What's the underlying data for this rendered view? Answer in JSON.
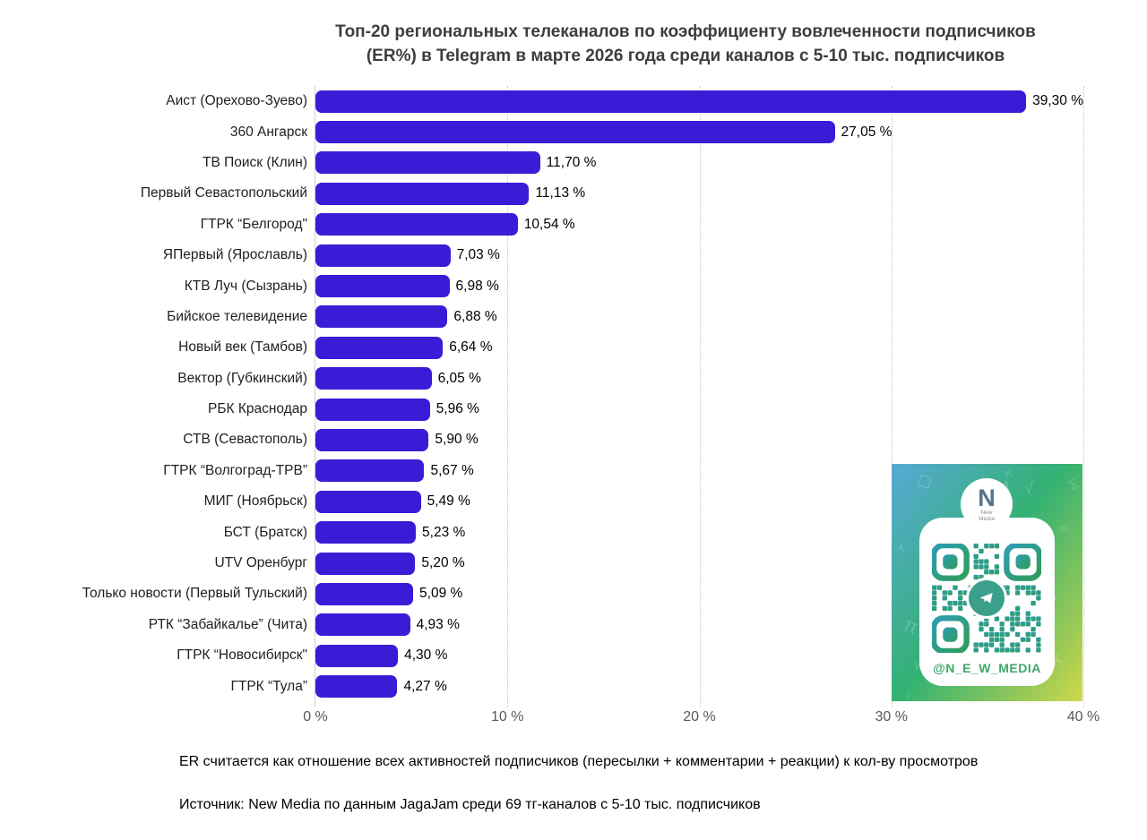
{
  "title": {
    "line1": "Топ-20 региональных телеканалов по коэффициенту вовлеченности подписчиков",
    "line2": "(ER%) в Telegram в марте 2026 года среди каналов с 5-10 тыс. подписчиков"
  },
  "chart_data": {
    "type": "bar",
    "orientation": "horizontal",
    "categories": [
      "Аист (Орехово-Зуево)",
      "360 Ангарск",
      "ТВ Поиск (Клин)",
      "Первый Севастопольский",
      "ГТРК “Белгород\"",
      "ЯПервый (Ярославль)",
      "КТВ Луч (Сызрань)",
      "Бийское телевидение",
      "Новый век (Тамбов)",
      "Вектор (Губкинский)",
      "РБК Краснодар",
      "СТВ (Севастополь)",
      "ГТРК “Волгоград-ТРВ”",
      "МИГ (Ноябрьск)",
      "БСТ (Братск)",
      "UTV Оренбург",
      "Только новости (Первый Тульский)",
      "РТК “Забайкалье” (Чита)",
      "ГТРК “Новосибирск\"",
      "ГТРК “Тула”"
    ],
    "values": [
      39.3,
      27.05,
      11.7,
      11.13,
      10.54,
      7.03,
      6.98,
      6.88,
      6.64,
      6.05,
      5.96,
      5.9,
      5.67,
      5.49,
      5.23,
      5.2,
      5.09,
      4.93,
      4.3,
      4.27
    ],
    "value_labels": [
      "39,30 %",
      "27,05 %",
      "11,70 %",
      "11,13 %",
      "10,54 %",
      "7,03 %",
      "6,98 %",
      "6,88 %",
      "6,64 %",
      "6,05 %",
      "5,96 %",
      "5,90 %",
      "5,67 %",
      "5,49 %",
      "5,23 %",
      "5,20 %",
      "5,09 %",
      "4,93 %",
      "4,30 %",
      "4,27 %"
    ],
    "xlim": [
      0,
      40
    ],
    "xticks": [
      0,
      10,
      20,
      30,
      40
    ],
    "xtick_labels": [
      "0 %",
      "10 %",
      "20 %",
      "30 %",
      "40 %"
    ],
    "grid": "dotted-vertical",
    "legend": "none",
    "bar_color": "#3A1CD6"
  },
  "footnotes": {
    "er_note": "ER считается как отношение всех активностей подписчиков (пересылки + комментарии + реакции) к кол-ву просмотров",
    "source": "Источник: New Media по данным JagaJam среди 69 тг-каналов с 5-10 тыс. подписчиков"
  },
  "qr_block": {
    "logo_letter": "N",
    "logo_text": "New Media",
    "handle": "@N_E_W_MEDIA",
    "qr_color": "#2f9d58",
    "qr_color2": "#2e9db4",
    "telegram_icon_color": "#3c9f8b",
    "doodle_glyphs": [
      "✈",
      "✉",
      "♪",
      "Σ",
      "π",
      "√",
      "∞",
      "◻",
      "＋",
      "λ",
      "♫",
      "Δ"
    ]
  }
}
